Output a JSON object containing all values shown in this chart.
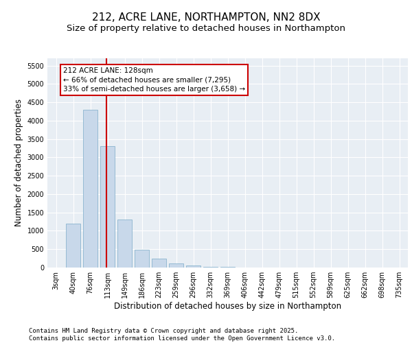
{
  "title1": "212, ACRE LANE, NORTHAMPTON, NN2 8DX",
  "title2": "Size of property relative to detached houses in Northampton",
  "xlabel": "Distribution of detached houses by size in Northampton",
  "ylabel": "Number of detached properties",
  "categories": [
    "3sqm",
    "40sqm",
    "76sqm",
    "113sqm",
    "149sqm",
    "186sqm",
    "223sqm",
    "259sqm",
    "296sqm",
    "332sqm",
    "369sqm",
    "406sqm",
    "442sqm",
    "479sqm",
    "515sqm",
    "552sqm",
    "589sqm",
    "625sqm",
    "662sqm",
    "698sqm",
    "735sqm"
  ],
  "values": [
    0,
    1200,
    4300,
    3300,
    1300,
    490,
    250,
    110,
    60,
    20,
    10,
    5,
    2,
    1,
    0,
    0,
    0,
    0,
    0,
    0,
    0
  ],
  "bar_color": "#c8d8ea",
  "bar_edgecolor": "#7aaac8",
  "line_color": "#cc0000",
  "annotation_box_text": "212 ACRE LANE: 128sqm\n← 66% of detached houses are smaller (7,295)\n33% of semi-detached houses are larger (3,658) →",
  "ylim": [
    0,
    5700
  ],
  "yticks": [
    0,
    500,
    1000,
    1500,
    2000,
    2500,
    3000,
    3500,
    4000,
    4500,
    5000,
    5500
  ],
  "background_color": "#e8eef4",
  "footer1": "Contains HM Land Registry data © Crown copyright and database right 2025.",
  "footer2": "Contains public sector information licensed under the Open Government Licence v3.0.",
  "title_fontsize": 11,
  "subtitle_fontsize": 9.5,
  "tick_fontsize": 7,
  "label_fontsize": 8.5,
  "footer_fontsize": 6.5
}
